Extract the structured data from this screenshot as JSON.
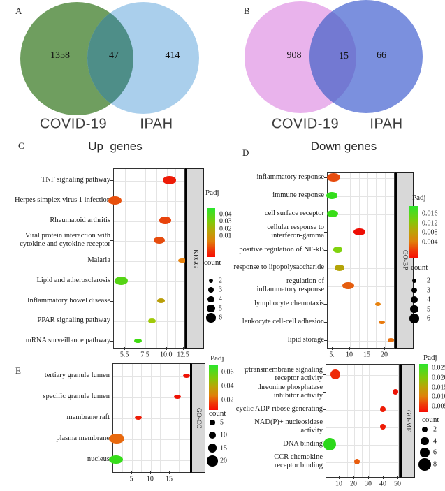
{
  "chart_data": [
    {
      "type": "venn",
      "panel_letter": "A",
      "sets": [
        {
          "label": "COVID-19",
          "size": 1358,
          "color": "#6f9e5f"
        },
        {
          "label": "IPAH",
          "size": 414,
          "color": "#aacfec"
        }
      ],
      "overlap": {
        "size": 47,
        "color": "#4e8e88"
      }
    },
    {
      "type": "venn",
      "panel_letter": "B",
      "sets": [
        {
          "label": "COVID-19",
          "size": 908,
          "color": "#e9b3ec"
        },
        {
          "label": "IPAH",
          "size": 66,
          "color": "#7b90de"
        }
      ],
      "overlap": {
        "size": 15,
        "color": "#7379d2"
      }
    },
    {
      "type": "scatter",
      "panel_letter": "C",
      "title": "Up  genes",
      "facet": "KEGG",
      "x_ticks": [
        {
          "value": 5.5,
          "label": "5.5"
        },
        {
          "value": 7.5,
          "label": "7.5"
        },
        {
          "value": 10,
          "label": "10.0"
        },
        {
          "value": 12.5,
          "label": "12.5"
        }
      ],
      "legend": {
        "padj_label": "Padj",
        "padj_values": [
          "0.04",
          "0.03",
          "0.02",
          "0.01"
        ],
        "count_label": "count",
        "count_values": [
          2,
          3,
          4,
          5,
          6
        ]
      },
      "rows": [
        {
          "label": "TNF signaling pathway",
          "x": 10.5,
          "count": 6,
          "color": "#ed1b07"
        },
        {
          "label": "Herpes simplex virus 1 infection",
          "x": 4.6,
          "count": 6,
          "color": "#e8500c"
        },
        {
          "label": "Rheumatoid arthritis",
          "x": 9.9,
          "count": 5,
          "color": "#e8430c"
        },
        {
          "label": "Viral protein interaction with\ncytokine and cytokine receptor",
          "x": 9.2,
          "count": 5,
          "color": "#e64c0e"
        },
        {
          "label": "Malaria",
          "x": 12.4,
          "count": 3,
          "color": "#e8820e"
        },
        {
          "label": "Lipid and atherosclerosis",
          "x": 5.2,
          "count": 6,
          "color": "#55d414"
        },
        {
          "label": "Inflammatory bowel disease",
          "x": 9.4,
          "count": 3,
          "color": "#b99e08"
        },
        {
          "label": "PPAR signaling pathway",
          "x": 8.3,
          "count": 3,
          "color": "#a0ca0a"
        },
        {
          "label": "mRNA surveillance pathway",
          "x": 6.8,
          "count": 3,
          "color": "#3edb10"
        }
      ]
    },
    {
      "type": "scatter",
      "panel_letter": "D",
      "title": "Down genes",
      "facet": "GO-BP",
      "x_ticks": [
        {
          "value": 5,
          "label": "5."
        },
        {
          "value": 10,
          "label": "10"
        },
        {
          "value": 15,
          "label": "15"
        },
        {
          "value": 20,
          "label": "20"
        }
      ],
      "legend": {
        "padj_label": "Padj",
        "padj_values": [
          "0.016",
          "0.012",
          "0.008",
          "0.004"
        ],
        "count_label": "count",
        "count_values": [
          2,
          3,
          4,
          5,
          6
        ]
      },
      "rows": [
        {
          "label": "inflammatory response",
          "x": 5.5,
          "count": 6,
          "color": "#e74c0e"
        },
        {
          "label": "immune response",
          "x": 5.0,
          "count": 5,
          "color": "#33dd1b"
        },
        {
          "label": "cell surface receptor",
          "x": 5.2,
          "count": 5,
          "color": "#39dd18"
        },
        {
          "label": "cellular response to\ninterferon-gamma",
          "x": 12.9,
          "count": 5,
          "color": "#ee0e05"
        },
        {
          "label": "positive regulation of NF-kB",
          "x": 6.7,
          "count": 4,
          "color": "#80d20e"
        },
        {
          "label": "response to lipopolysaccharide",
          "x": 7.2,
          "count": 4,
          "color": "#b4a408"
        },
        {
          "label": "regulation of\ninflammatory response",
          "x": 9.7,
          "count": 5,
          "color": "#e55d0e"
        },
        {
          "label": "lymphocyte chemotaxis",
          "x": 18.2,
          "count": 2,
          "color": "#e8820e"
        },
        {
          "label": "leukocyte cell-cell adhesion",
          "x": 19.3,
          "count": 2,
          "color": "#e87a0e"
        },
        {
          "label": "lipid storage",
          "x": 21.9,
          "count": 2,
          "color": "#e8700e"
        }
      ]
    },
    {
      "type": "scatter",
      "panel_letter": "E",
      "title": "",
      "facet": "GO-CC",
      "x_ticks": [
        {
          "value": 5,
          "label": "5"
        },
        {
          "value": 10,
          "label": "10"
        },
        {
          "value": 15,
          "label": "15"
        }
      ],
      "legend": {
        "padj_label": "Padj",
        "padj_values": [
          "0.06",
          "0.04",
          "0.02"
        ],
        "count_label": "count",
        "count_values": [
          5,
          10,
          15,
          20
        ]
      },
      "rows": [
        {
          "label": "tertiary granule lumen",
          "x": 19.6,
          "count": 5,
          "color": "#ee1205"
        },
        {
          "label": "specific granule lumen",
          "x": 17.2,
          "count": 5,
          "color": "#ee1205"
        },
        {
          "label": "membrane raft",
          "x": 6.9,
          "count": 5,
          "color": "#ee1c06"
        },
        {
          "label": "plasma membrane",
          "x": 1.1,
          "count": 20,
          "color": "#e8690e"
        },
        {
          "label": "nucleus",
          "x": 0.9,
          "count": 18,
          "color": "#36dd1a"
        }
      ]
    },
    {
      "type": "scatter",
      "panel_letter": "F",
      "title": "",
      "facet": "GO-MF",
      "x_ticks": [
        {
          "value": 10,
          "label": "10"
        },
        {
          "value": 20,
          "label": "20"
        },
        {
          "value": 30,
          "label": "30"
        },
        {
          "value": 40,
          "label": "40"
        },
        {
          "value": 50,
          "label": "50"
        }
      ],
      "legend": {
        "padj_label": "Padj",
        "padj_values": [
          "0.025",
          "0.020",
          "0.015",
          "0.010",
          "0.005"
        ],
        "count_label": "count",
        "count_values": [
          2,
          4,
          6,
          8
        ]
      },
      "rows": [
        {
          "label": "transmembrane signaling\nreceptor activity",
          "x": 7.6,
          "count": 6,
          "color": "#ee2a08"
        },
        {
          "label": "threonine phosphatase\ninhibitor activity",
          "x": 48.6,
          "count": 2,
          "color": "#ee1205"
        },
        {
          "label": "cyclic ADP-ribose generating",
          "x": 40,
          "count": 2,
          "color": "#ee1c06"
        },
        {
          "label": "NAD(P)+ nucleosidase activity",
          "x": 40,
          "count": 2,
          "color": "#ee1c06"
        },
        {
          "label": "DNA binding",
          "x": 3.9,
          "count": 8,
          "color": "#2bd81a"
        },
        {
          "label": "CCR chemokine\nreceptor binding",
          "x": 22.4,
          "count": 2,
          "color": "#e85c0c"
        }
      ]
    }
  ]
}
